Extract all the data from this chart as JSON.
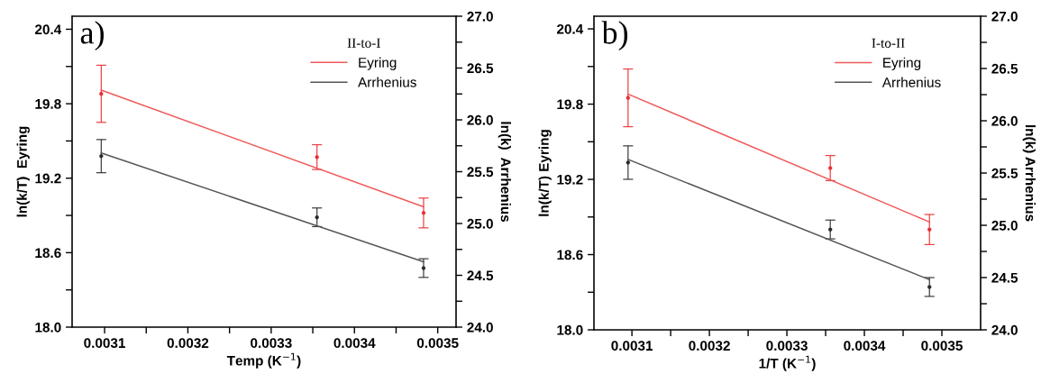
{
  "chart_data": [
    {
      "type": "line",
      "xlabel": "Temp (K$^{−1}$)",
      "ylabel": "ln(k/T)  Eyring",
      "y2label": "ln(k)  Arrhenius",
      "legend_title": "II-to-I",
      "legend": "top right",
      "annotations": [
        "a)"
      ],
      "xlim": [
        0.003061,
        0.003522
      ],
      "ylim": [
        18.0,
        20.505
      ],
      "y2lim": [
        24.0,
        27.0
      ],
      "xticks": [
        {
          "value": 0.0031,
          "label": "0.0031"
        },
        {
          "value": 0.00315,
          "label": null
        },
        {
          "value": 0.0032,
          "label": "0.0032"
        },
        {
          "value": 0.00325,
          "label": null
        },
        {
          "value": 0.0033,
          "label": "0.0033"
        },
        {
          "value": 0.00335,
          "label": null
        },
        {
          "value": 0.0034,
          "label": "0.0034"
        },
        {
          "value": 0.00345,
          "label": null
        },
        {
          "value": 0.0035,
          "label": "0.0035"
        }
      ],
      "yticks": [
        {
          "value": 18.0,
          "label": "18.0"
        },
        {
          "value": 18.3,
          "label": null
        },
        {
          "value": 18.6,
          "label": "18.6"
        },
        {
          "value": 18.9,
          "label": null
        },
        {
          "value": 19.2,
          "label": "19.2"
        },
        {
          "value": 19.5,
          "label": null
        },
        {
          "value": 19.8,
          "label": "19.8"
        },
        {
          "value": 20.1,
          "label": null
        },
        {
          "value": 20.4,
          "label": "20.4"
        }
      ],
      "y2ticks": [
        {
          "value": 24.0,
          "label": "24.0"
        },
        {
          "value": 24.25,
          "label": null
        },
        {
          "value": 24.5,
          "label": "24.5"
        },
        {
          "value": 24.75,
          "label": null
        },
        {
          "value": 25.0,
          "label": "25.0"
        },
        {
          "value": 25.25,
          "label": null
        },
        {
          "value": 25.5,
          "label": "25.5"
        },
        {
          "value": 25.75,
          "label": null
        },
        {
          "value": 26.0,
          "label": "26.0"
        },
        {
          "value": 26.25,
          "label": null
        },
        {
          "value": 26.5,
          "label": "26.5"
        },
        {
          "value": 26.75,
          "label": null
        },
        {
          "value": 27.0,
          "label": "27.0"
        }
      ],
      "series": [
        {
          "type": "scatter",
          "color": "#e8262a",
          "marker": "circle",
          "x": [
            0.003096,
            0.003355,
            0.003483
          ],
          "values": [
            19.88,
            19.37,
            18.92
          ],
          "errors": [
            0.23,
            0.1,
            0.12
          ]
        },
        {
          "type": "scatter",
          "color": "#222222",
          "marker": "circle",
          "axis": "y2",
          "x": [
            0.003096,
            0.003355,
            0.003483
          ],
          "values": [
            25.65,
            25.06,
            24.57
          ],
          "errors": [
            0.16,
            0.09,
            0.09
          ]
        },
        {
          "name": "Eyring",
          "color": "#f05a5a",
          "x": [
            0.003096,
            0.003483
          ],
          "values": [
            19.91,
            18.97
          ]
        },
        {
          "name": "Arrhenius",
          "color": "#555555",
          "axis": "y2",
          "x": [
            0.003096,
            0.003483
          ],
          "values": [
            25.68,
            24.63
          ]
        }
      ]
    },
    {
      "type": "line",
      "xlabel": "1/T (K$^{−1}$)",
      "ylabel": "ln(k/T) Eyring",
      "y2label": "ln(k) Arrhenius",
      "legend_title": "I-to-II",
      "legend": "top right",
      "annotations": [
        "b)"
      ],
      "xlim": [
        0.003051,
        0.00355
      ],
      "ylim": [
        18.0,
        20.501
      ],
      "y2lim": [
        24.0,
        27.0
      ],
      "xticks": [
        {
          "value": 0.0031,
          "label": "0.0031"
        },
        {
          "value": 0.00315,
          "label": null
        },
        {
          "value": 0.0032,
          "label": "0.0032"
        },
        {
          "value": 0.00325,
          "label": null
        },
        {
          "value": 0.0033,
          "label": "0.0033"
        },
        {
          "value": 0.00335,
          "label": null
        },
        {
          "value": 0.0034,
          "label": "0.0034"
        },
        {
          "value": 0.00345,
          "label": null
        },
        {
          "value": 0.0035,
          "label": "0.0035"
        }
      ],
      "yticks": [
        {
          "value": 18.0,
          "label": "18.0"
        },
        {
          "value": 18.3,
          "label": null
        },
        {
          "value": 18.6,
          "label": "18.6"
        },
        {
          "value": 18.9,
          "label": null
        },
        {
          "value": 19.2,
          "label": "19.2"
        },
        {
          "value": 19.5,
          "label": null
        },
        {
          "value": 19.8,
          "label": "19.8"
        },
        {
          "value": 20.1,
          "label": null
        },
        {
          "value": 20.4,
          "label": "20.4"
        }
      ],
      "y2ticks": [
        {
          "value": 24.0,
          "label": "24.0"
        },
        {
          "value": 24.25,
          "label": null
        },
        {
          "value": 24.5,
          "label": "24.5"
        },
        {
          "value": 24.75,
          "label": null
        },
        {
          "value": 25.0,
          "label": "25.0"
        },
        {
          "value": 25.25,
          "label": null
        },
        {
          "value": 25.5,
          "label": "25.5"
        },
        {
          "value": 25.75,
          "label": null
        },
        {
          "value": 26.0,
          "label": "26.0"
        },
        {
          "value": 26.25,
          "label": null
        },
        {
          "value": 26.5,
          "label": "26.5"
        },
        {
          "value": 26.75,
          "label": null
        },
        {
          "value": 27.0,
          "label": "27.0"
        }
      ],
      "series": [
        {
          "type": "scatter",
          "color": "#e8262a",
          "marker": "circle",
          "x": [
            0.003095,
            0.003356,
            0.003484
          ],
          "values": [
            19.85,
            19.29,
            18.8
          ],
          "errors": [
            0.23,
            0.1,
            0.12
          ]
        },
        {
          "type": "scatter",
          "color": "#222222",
          "marker": "circle",
          "axis": "y2",
          "x": [
            0.003095,
            0.003356,
            0.003484
          ],
          "values": [
            25.6,
            24.96,
            24.41
          ],
          "errors": [
            0.16,
            0.09,
            0.09
          ]
        },
        {
          "name": "Eyring",
          "color": "#f05a5a",
          "x": [
            0.003095,
            0.003484
          ],
          "values": [
            19.88,
            18.86
          ]
        },
        {
          "name": "Arrhenius",
          "color": "#555555",
          "axis": "y2",
          "x": [
            0.003095,
            0.003484
          ],
          "values": [
            25.63,
            24.48
          ]
        }
      ]
    }
  ]
}
